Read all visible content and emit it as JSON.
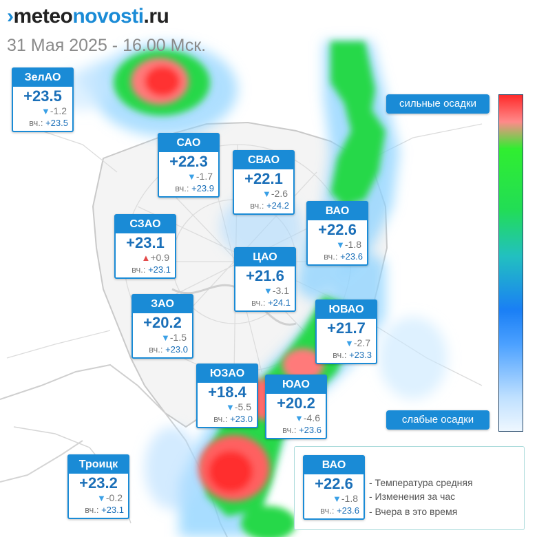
{
  "header": {
    "logo_parts": [
      "meteo",
      "novosti",
      ".ru"
    ],
    "datetime": "31 Мая 2025 - 16.00 Мск."
  },
  "districts": [
    {
      "name": "ЗелАО",
      "temp": "+23.5",
      "change": "-1.2",
      "trend": "down",
      "yesterday_label": "вч.:",
      "yesterday": "+23.5"
    },
    {
      "name": "САО",
      "temp": "+22.3",
      "change": "-1.7",
      "trend": "down",
      "yesterday_label": "вч.:",
      "yesterday": "+23.9"
    },
    {
      "name": "СВАО",
      "temp": "+22.1",
      "change": "-2.6",
      "trend": "down",
      "yesterday_label": "вч.:",
      "yesterday": "+24.2"
    },
    {
      "name": "ВАО",
      "temp": "+22.6",
      "change": "-1.8",
      "trend": "down",
      "yesterday_label": "вч.:",
      "yesterday": "+23.6"
    },
    {
      "name": "СЗАО",
      "temp": "+23.1",
      "change": "+0.9",
      "trend": "up",
      "yesterday_label": "вч.:",
      "yesterday": "+23.1"
    },
    {
      "name": "ЦАО",
      "temp": "+21.6",
      "change": "-3.1",
      "trend": "down",
      "yesterday_label": "вч.:",
      "yesterday": "+24.1"
    },
    {
      "name": "ЗАО",
      "temp": "+20.2",
      "change": "-1.5",
      "trend": "down",
      "yesterday_label": "вч.:",
      "yesterday": "+23.0"
    },
    {
      "name": "ЮВАО",
      "temp": "+21.7",
      "change": "-2.7",
      "trend": "down",
      "yesterday_label": "вч.:",
      "yesterday": "+23.3"
    },
    {
      "name": "ЮЗАО",
      "temp": "+18.4",
      "change": "-5.5",
      "trend": "down",
      "yesterday_label": "вч.:",
      "yesterday": "+23.0"
    },
    {
      "name": "ЮАО",
      "temp": "+20.2",
      "change": "-4.6",
      "trend": "down",
      "yesterday_label": "вч.:",
      "yesterday": "+23.6"
    },
    {
      "name": "Троицк",
      "temp": "+23.2",
      "change": "-0.2",
      "trend": "down",
      "yesterday_label": "вч.:",
      "yesterday": "+23.1"
    }
  ],
  "precip_scale": {
    "high_label": "сильные осадки",
    "low_label": "слабые осадки",
    "colors": [
      "#ff2a2a",
      "#30ee30",
      "#1a7ff5",
      "#eef7ff"
    ]
  },
  "legend": {
    "example": {
      "name": "ВАО",
      "temp": "+22.6",
      "change": "-1.8",
      "trend": "down",
      "yesterday_label": "вч.:",
      "yesterday": "+23.6"
    },
    "items": [
      "- Температура средняя",
      "- Изменения за час",
      "- Вчера в это время"
    ]
  },
  "arrows": {
    "down": "▼",
    "up": "▲"
  }
}
